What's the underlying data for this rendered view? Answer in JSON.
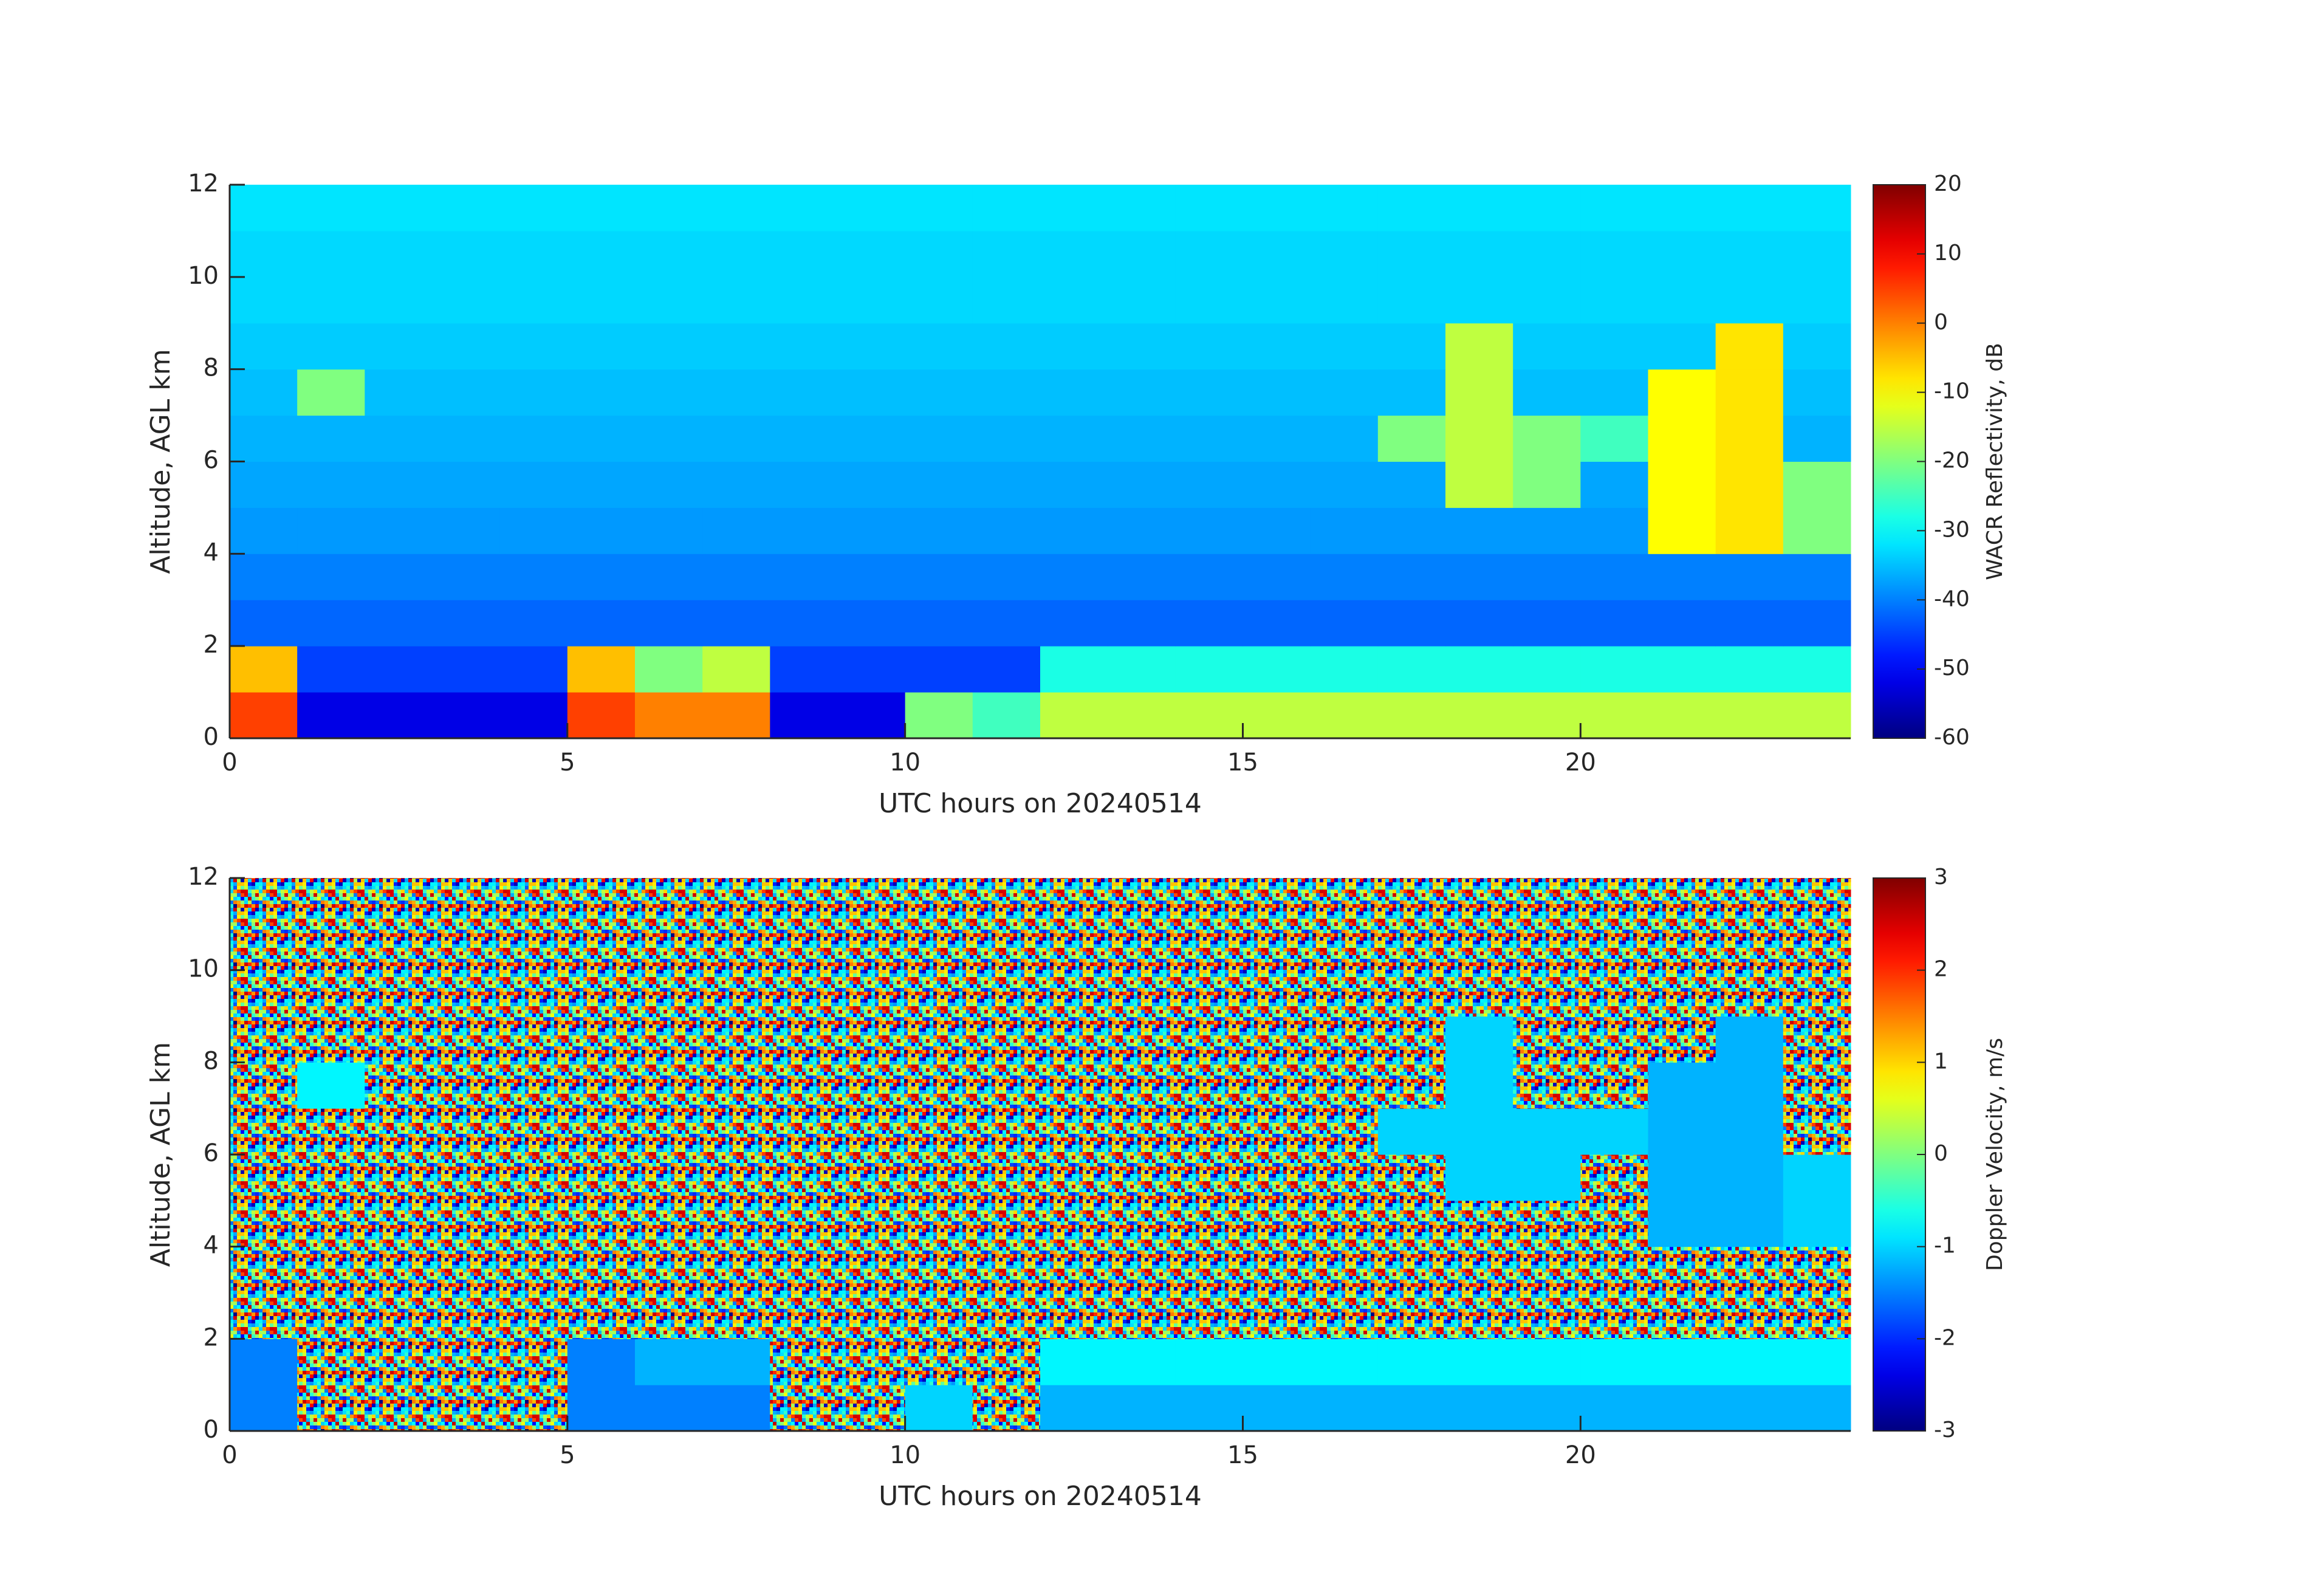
{
  "chart_data": [
    {
      "type": "heatmap",
      "colormap": "jet",
      "xlabel": "UTC hours on 20240514",
      "ylabel": "Altitude, AGL km",
      "xlim": [
        0,
        24
      ],
      "ylim": [
        0,
        12
      ],
      "xticks": [
        0,
        5,
        10,
        15,
        20
      ],
      "yticks": [
        0,
        2,
        4,
        6,
        8,
        10,
        12
      ],
      "x": [
        0.5,
        1.5,
        2.5,
        3.5,
        4.5,
        5.5,
        6.5,
        7.5,
        8.5,
        9.5,
        10.5,
        11.5,
        12.5,
        13.5,
        14.5,
        15.5,
        16.5,
        17.5,
        18.5,
        19.5,
        20.5,
        21.5,
        22.5,
        23.5
      ],
      "y": [
        0.5,
        1.5,
        2.5,
        3.5,
        4.5,
        5.5,
        6.5,
        7.5,
        8.5,
        9.5,
        10.5,
        11.5
      ],
      "z": [
        [
          5,
          -52,
          -52,
          -52,
          -52,
          5,
          0,
          0,
          -52,
          -52,
          -20,
          -25,
          -15,
          -15,
          -15,
          -15,
          -15,
          -15,
          -15,
          -15,
          -15,
          -15,
          -15,
          -15
        ],
        [
          -5,
          -45,
          -45,
          -45,
          -45,
          -5,
          -20,
          -15,
          -45,
          -45,
          -45,
          -45,
          -28,
          -28,
          -28,
          -28,
          -28,
          -28,
          -28,
          -28,
          -28,
          -28,
          -28,
          -28
        ],
        [
          -42,
          -42,
          -42,
          -42,
          -42,
          -42,
          -42,
          -42,
          -42,
          -42,
          -42,
          -42,
          -42,
          -42,
          -42,
          -42,
          -42,
          -42,
          -42,
          -42,
          -42,
          -42,
          -42,
          -42
        ],
        [
          -40,
          -40,
          -40,
          -40,
          -40,
          -40,
          -40,
          -40,
          -40,
          -40,
          -40,
          -40,
          -40,
          -40,
          -40,
          -40,
          -40,
          -40,
          -40,
          -40,
          -40,
          -40,
          -40,
          -40
        ],
        [
          -38,
          -38,
          -38,
          -38,
          -38,
          -38,
          -38,
          -38,
          -38,
          -38,
          -38,
          -38,
          -38,
          -38,
          -38,
          -38,
          -38,
          -38,
          -38,
          -38,
          -38,
          -10,
          -8,
          -20
        ],
        [
          -37,
          -37,
          -37,
          -37,
          -37,
          -37,
          -37,
          -37,
          -37,
          -37,
          -37,
          -37,
          -37,
          -37,
          -37,
          -37,
          -37,
          -37,
          -15,
          -20,
          -37,
          -10,
          -8,
          -20
        ],
        [
          -36,
          -36,
          -36,
          -36,
          -36,
          -36,
          -36,
          -36,
          -36,
          -36,
          -36,
          -36,
          -36,
          -36,
          -36,
          -36,
          -36,
          -20,
          -15,
          -20,
          -25,
          -10,
          -8,
          -36
        ],
        [
          -35,
          -20,
          -35,
          -35,
          -35,
          -35,
          -35,
          -35,
          -35,
          -35,
          -35,
          -35,
          -35,
          -35,
          -35,
          -35,
          -35,
          -35,
          -15,
          -35,
          -35,
          -10,
          -8,
          -35
        ],
        [
          -34,
          -34,
          -34,
          -34,
          -34,
          -34,
          -34,
          -34,
          -34,
          -34,
          -34,
          -34,
          -34,
          -34,
          -34,
          -34,
          -34,
          -34,
          -15,
          -34,
          -34,
          -34,
          -8,
          -34
        ],
        [
          -33,
          -33,
          -33,
          -33,
          -33,
          -33,
          -33,
          -33,
          -33,
          -33,
          -33,
          -33,
          -33,
          -33,
          -33,
          -33,
          -33,
          -33,
          -33,
          -33,
          -33,
          -33,
          -33,
          -33
        ],
        [
          -33,
          -33,
          -33,
          -33,
          -33,
          -33,
          -33,
          -33,
          -33,
          -33,
          -33,
          -33,
          -33,
          -33,
          -33,
          -33,
          -33,
          -33,
          -33,
          -33,
          -33,
          -33,
          -33,
          -33
        ],
        [
          -32,
          -32,
          -32,
          -32,
          -32,
          -32,
          -32,
          -32,
          -32,
          -32,
          -32,
          -32,
          -32,
          -32,
          -32,
          -32,
          -32,
          -32,
          -32,
          -32,
          -32,
          -32,
          -32,
          -32
        ]
      ],
      "colorbar": {
        "label": "WACR Reflectivity, dB",
        "clim": [
          -60,
          20
        ],
        "ticks": [
          -60,
          -50,
          -40,
          -30,
          -20,
          -10,
          0,
          10,
          20
        ]
      }
    },
    {
      "type": "heatmap",
      "colormap": "jet",
      "xlabel": "UTC hours on 20240514",
      "ylabel": "Altitude, AGL km",
      "xlim": [
        0,
        24
      ],
      "ylim": [
        0,
        12
      ],
      "xticks": [
        0,
        5,
        10,
        15,
        20
      ],
      "yticks": [
        0,
        2,
        4,
        6,
        8,
        10,
        12
      ],
      "x": [
        0.5,
        1.5,
        2.5,
        3.5,
        4.5,
        5.5,
        6.5,
        7.5,
        8.5,
        9.5,
        10.5,
        11.5,
        12.5,
        13.5,
        14.5,
        15.5,
        16.5,
        17.5,
        18.5,
        19.5,
        20.5,
        21.5,
        22.5,
        23.5
      ],
      "y": [
        0.5,
        1.5,
        2.5,
        3.5,
        4.5,
        5.5,
        6.5,
        7.5,
        8.5,
        9.5,
        10.5,
        11.5
      ],
      "z": [
        [
          -1.5,
          null,
          null,
          null,
          null,
          -1.5,
          -1.5,
          -1.5,
          null,
          null,
          -1,
          null,
          -1.2,
          -1.2,
          -1.2,
          -1.2,
          -1.2,
          -1.2,
          -1.2,
          -1.2,
          -1.2,
          -1.2,
          -1.2,
          -1.2
        ],
        [
          -1.5,
          null,
          null,
          null,
          null,
          -1.5,
          -1.2,
          -1.2,
          null,
          null,
          null,
          null,
          -0.8,
          -0.8,
          -0.8,
          -0.8,
          -0.8,
          -0.8,
          -0.8,
          -0.8,
          -0.8,
          -0.8,
          -0.8,
          -0.8
        ],
        [
          null,
          null,
          null,
          null,
          null,
          null,
          null,
          null,
          null,
          null,
          null,
          null,
          null,
          null,
          null,
          null,
          null,
          null,
          null,
          null,
          null,
          null,
          null,
          null
        ],
        [
          null,
          null,
          null,
          null,
          null,
          null,
          null,
          null,
          null,
          null,
          null,
          null,
          null,
          null,
          null,
          null,
          null,
          null,
          null,
          null,
          null,
          null,
          null,
          null
        ],
        [
          null,
          null,
          null,
          null,
          null,
          null,
          null,
          null,
          null,
          null,
          null,
          null,
          null,
          null,
          null,
          null,
          null,
          null,
          null,
          null,
          null,
          -1.2,
          -1.2,
          -1
        ],
        [
          null,
          null,
          null,
          null,
          null,
          null,
          null,
          null,
          null,
          null,
          null,
          null,
          null,
          null,
          null,
          null,
          null,
          null,
          -1,
          -1,
          null,
          -1.2,
          -1.2,
          -1
        ],
        [
          null,
          null,
          null,
          null,
          null,
          null,
          null,
          null,
          null,
          null,
          null,
          null,
          null,
          null,
          null,
          null,
          null,
          -1,
          -1,
          -1,
          -1,
          -1.2,
          -1.2,
          null
        ],
        [
          null,
          -0.8,
          null,
          null,
          null,
          null,
          null,
          null,
          null,
          null,
          null,
          null,
          null,
          null,
          null,
          null,
          null,
          null,
          -1,
          null,
          null,
          -1.2,
          -1.2,
          null
        ],
        [
          null,
          null,
          null,
          null,
          null,
          null,
          null,
          null,
          null,
          null,
          null,
          null,
          null,
          null,
          null,
          null,
          null,
          null,
          -1,
          null,
          null,
          null,
          -1.2,
          null
        ],
        [
          null,
          null,
          null,
          null,
          null,
          null,
          null,
          null,
          null,
          null,
          null,
          null,
          null,
          null,
          null,
          null,
          null,
          null,
          null,
          null,
          null,
          null,
          null,
          null
        ],
        [
          null,
          null,
          null,
          null,
          null,
          null,
          null,
          null,
          null,
          null,
          null,
          null,
          null,
          null,
          null,
          null,
          null,
          null,
          null,
          null,
          null,
          null,
          null,
          null
        ],
        [
          null,
          null,
          null,
          null,
          null,
          null,
          null,
          null,
          null,
          null,
          null,
          null,
          null,
          null,
          null,
          null,
          null,
          null,
          null,
          null,
          null,
          null,
          null,
          null
        ]
      ],
      "colorbar": {
        "label": "Doppler Velocity, m/s",
        "clim": [
          -3,
          3
        ],
        "ticks": [
          -3,
          -2,
          -1,
          0,
          1,
          2,
          3
        ]
      }
    }
  ]
}
